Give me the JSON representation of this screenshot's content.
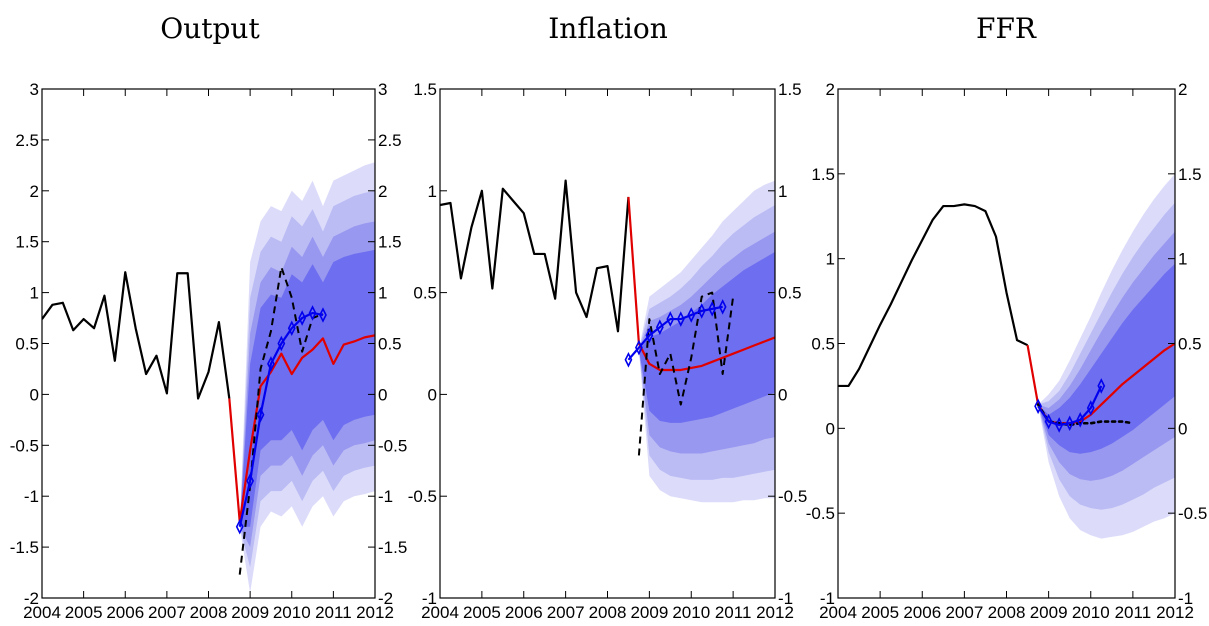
{
  "chart_data": [
    {
      "type": "line",
      "title": "Output",
      "xlim": [
        2004,
        2012
      ],
      "xticks": [
        2004,
        2005,
        2006,
        2007,
        2008,
        2009,
        2010,
        2011,
        2012
      ],
      "ylim": [
        -2,
        3
      ],
      "yticks": [
        -2,
        -1.5,
        -1,
        -0.5,
        0,
        0.5,
        1,
        1.5,
        2,
        2.5,
        3
      ],
      "ytick_labels": [
        "-2",
        "-1.5",
        "-1",
        "-0.5",
        "0",
        "0.5",
        "1",
        "1.5",
        "2",
        "2.5",
        "3"
      ],
      "fan": {
        "x": [
          2008.75,
          2009.0,
          2009.25,
          2009.5,
          2009.75,
          2010.0,
          2010.25,
          2010.5,
          2010.75,
          2011.0,
          2011.25,
          2011.5,
          2011.75,
          2012.0
        ],
        "bands": [
          {
            "lower": [
              -1.3,
              -1.95,
              -1.3,
              -1.15,
              -1.2,
              -1.1,
              -1.3,
              -1.1,
              -1.0,
              -1.2,
              -1.05,
              -1.0,
              -0.98,
              -0.95
            ],
            "upper": [
              -1.3,
              1.3,
              1.7,
              1.85,
              1.8,
              2.0,
              1.9,
              2.1,
              1.85,
              2.1,
              2.15,
              2.2,
              2.25,
              2.28
            ]
          },
          {
            "lower": [
              -1.3,
              -1.7,
              -1.05,
              -0.95,
              -0.95,
              -0.85,
              -1.05,
              -0.85,
              -0.75,
              -0.95,
              -0.8,
              -0.75,
              -0.72,
              -0.7
            ],
            "upper": [
              -1.3,
              0.95,
              1.4,
              1.55,
              1.5,
              1.75,
              1.65,
              1.82,
              1.6,
              1.85,
              1.9,
              1.95,
              1.98,
              2.0
            ]
          },
          {
            "lower": [
              -1.3,
              -1.5,
              -0.8,
              -0.7,
              -0.7,
              -0.6,
              -0.8,
              -0.6,
              -0.5,
              -0.7,
              -0.55,
              -0.5,
              -0.48,
              -0.45
            ],
            "upper": [
              -1.3,
              0.6,
              1.1,
              1.25,
              1.2,
              1.45,
              1.35,
              1.55,
              1.35,
              1.55,
              1.6,
              1.65,
              1.68,
              1.7
            ]
          },
          {
            "lower": [
              -1.3,
              -1.3,
              -0.55,
              -0.45,
              -0.45,
              -0.35,
              -0.55,
              -0.35,
              -0.25,
              -0.45,
              -0.3,
              -0.25,
              -0.22,
              -0.2
            ],
            "upper": [
              -1.3,
              0.3,
              0.85,
              0.98,
              0.95,
              1.18,
              1.1,
              1.28,
              1.1,
              1.3,
              1.35,
              1.38,
              1.4,
              1.42
            ]
          }
        ]
      },
      "series": [
        {
          "color": "#000000",
          "style": "solid",
          "width": 2.2,
          "x": [
            2004.0,
            2004.25,
            2004.5,
            2004.75,
            2005.0,
            2005.25,
            2005.5,
            2005.75,
            2006.0,
            2006.25,
            2006.5,
            2006.75,
            2007.0,
            2007.25,
            2007.5,
            2007.75,
            2008.0,
            2008.25,
            2008.5
          ],
          "y": [
            0.74,
            0.88,
            0.9,
            0.63,
            0.74,
            0.65,
            0.97,
            0.33,
            1.2,
            0.65,
            0.2,
            0.38,
            0.01,
            1.19,
            1.19,
            -0.04,
            0.22,
            0.71,
            -0.04
          ]
        },
        {
          "color": "#e00000",
          "style": "solid",
          "width": 2.2,
          "x": [
            2008.5,
            2008.75,
            2009.0,
            2009.25,
            2009.5,
            2009.75,
            2010.0,
            2010.25,
            2010.5,
            2010.75,
            2011.0,
            2011.25,
            2011.5,
            2011.75,
            2012.0
          ],
          "y": [
            -0.04,
            -1.25,
            -0.55,
            0.08,
            0.22,
            0.4,
            0.2,
            0.36,
            0.44,
            0.55,
            0.3,
            0.49,
            0.52,
            0.56,
            0.58
          ]
        },
        {
          "color": "#000000",
          "style": "dashed",
          "width": 2.0,
          "x": [
            2008.75,
            2009.0,
            2009.25,
            2009.5,
            2009.75,
            2010.0,
            2010.25,
            2010.5,
            2010.75
          ],
          "y": [
            -1.77,
            -0.9,
            0.25,
            0.62,
            1.25,
            0.95,
            0.42,
            0.75,
            0.79
          ]
        },
        {
          "color": "#0000ee",
          "style": "solid",
          "width": 2.2,
          "markers": "diamond",
          "x": [
            2008.75,
            2009.0,
            2009.25,
            2009.5,
            2009.75,
            2010.0,
            2010.25,
            2010.5,
            2010.75
          ],
          "y": [
            -1.3,
            -0.85,
            -0.2,
            0.3,
            0.5,
            0.65,
            0.75,
            0.8,
            0.78
          ]
        }
      ]
    },
    {
      "type": "line",
      "title": "Inflation",
      "xlim": [
        2004,
        2012
      ],
      "xticks": [
        2004,
        2005,
        2006,
        2007,
        2008,
        2009,
        2010,
        2011,
        2012
      ],
      "ylim": [
        -1,
        1.5
      ],
      "yticks": [
        -1,
        -0.5,
        0,
        0.5,
        1,
        1.5
      ],
      "ytick_labels": [
        "-1",
        "-0.5",
        "0",
        "0.5",
        "1",
        "1.5"
      ],
      "fan": {
        "x": [
          2008.75,
          2009.0,
          2009.25,
          2009.5,
          2009.75,
          2010.0,
          2010.25,
          2010.5,
          2010.75,
          2011.0,
          2011.25,
          2011.5,
          2011.75,
          2012.0
        ],
        "bands": [
          {
            "lower": [
              0.22,
              -0.4,
              -0.47,
              -0.5,
              -0.51,
              -0.52,
              -0.53,
              -0.53,
              -0.53,
              -0.53,
              -0.52,
              -0.52,
              -0.51,
              -0.51
            ],
            "upper": [
              0.22,
              0.48,
              0.52,
              0.56,
              0.6,
              0.66,
              0.72,
              0.78,
              0.85,
              0.9,
              0.95,
              1.0,
              1.03,
              1.05
            ]
          },
          {
            "lower": [
              0.22,
              -0.3,
              -0.37,
              -0.4,
              -0.41,
              -0.42,
              -0.42,
              -0.42,
              -0.41,
              -0.41,
              -0.4,
              -0.39,
              -0.38,
              -0.37
            ],
            "upper": [
              0.22,
              0.42,
              0.45,
              0.48,
              0.52,
              0.57,
              0.63,
              0.68,
              0.74,
              0.79,
              0.83,
              0.87,
              0.9,
              0.93
            ]
          },
          {
            "lower": [
              0.22,
              -0.2,
              -0.26,
              -0.28,
              -0.29,
              -0.29,
              -0.29,
              -0.28,
              -0.27,
              -0.26,
              -0.25,
              -0.24,
              -0.22,
              -0.21
            ],
            "upper": [
              0.22,
              0.36,
              0.38,
              0.41,
              0.44,
              0.48,
              0.53,
              0.58,
              0.63,
              0.67,
              0.71,
              0.74,
              0.77,
              0.8
            ]
          },
          {
            "lower": [
              0.22,
              -0.08,
              -0.13,
              -0.14,
              -0.14,
              -0.13,
              -0.12,
              -0.11,
              -0.09,
              -0.07,
              -0.05,
              -0.03,
              -0.01,
              0.01
            ],
            "upper": [
              0.22,
              0.28,
              0.3,
              0.33,
              0.36,
              0.4,
              0.44,
              0.49,
              0.53,
              0.57,
              0.61,
              0.64,
              0.67,
              0.7
            ]
          }
        ]
      },
      "series": [
        {
          "color": "#000000",
          "style": "solid",
          "width": 2.2,
          "x": [
            2004.0,
            2004.25,
            2004.5,
            2004.75,
            2005.0,
            2005.25,
            2005.5,
            2005.75,
            2006.0,
            2006.25,
            2006.5,
            2006.75,
            2007.0,
            2007.25,
            2007.5,
            2007.75,
            2008.0,
            2008.25,
            2008.5
          ],
          "y": [
            0.93,
            0.94,
            0.57,
            0.82,
            1.0,
            0.52,
            1.01,
            0.95,
            0.89,
            0.69,
            0.69,
            0.47,
            1.05,
            0.5,
            0.38,
            0.62,
            0.63,
            0.31,
            0.97
          ]
        },
        {
          "color": "#e00000",
          "style": "solid",
          "width": 2.2,
          "x": [
            2008.5,
            2008.75,
            2009.0,
            2009.25,
            2009.5,
            2009.75,
            2010.0,
            2010.25,
            2010.5,
            2010.75,
            2011.0,
            2011.25,
            2011.5,
            2011.75,
            2012.0
          ],
          "y": [
            0.97,
            0.25,
            0.15,
            0.12,
            0.12,
            0.12,
            0.13,
            0.14,
            0.16,
            0.18,
            0.2,
            0.22,
            0.24,
            0.26,
            0.28
          ]
        },
        {
          "color": "#000000",
          "style": "dashed",
          "width": 2.0,
          "x": [
            2008.75,
            2009.0,
            2009.25,
            2009.5,
            2009.75,
            2010.0,
            2010.25,
            2010.5,
            2010.75,
            2011.0
          ],
          "y": [
            -0.3,
            0.37,
            0.1,
            0.2,
            -0.05,
            0.18,
            0.48,
            0.5,
            0.1,
            0.48
          ]
        },
        {
          "color": "#0000ee",
          "style": "solid",
          "width": 2.2,
          "markers": "diamond",
          "x": [
            2008.5,
            2008.75,
            2009.0,
            2009.25,
            2009.5,
            2009.75,
            2010.0,
            2010.25,
            2010.5,
            2010.75
          ],
          "y": [
            0.17,
            0.23,
            0.29,
            0.33,
            0.37,
            0.37,
            0.39,
            0.41,
            0.42,
            0.43
          ]
        }
      ]
    },
    {
      "type": "line",
      "title": "FFR",
      "xlim": [
        2004,
        2012
      ],
      "xticks": [
        2004,
        2005,
        2006,
        2007,
        2008,
        2009,
        2010,
        2011,
        2012
      ],
      "ylim": [
        -1,
        2
      ],
      "yticks": [
        -1,
        -0.5,
        0,
        0.5,
        1,
        1.5,
        2
      ],
      "ytick_labels": [
        "-1",
        "-0.5",
        "0",
        "0.5",
        "1",
        "1.5",
        "2"
      ],
      "fan": {
        "x": [
          2008.75,
          2009.0,
          2009.25,
          2009.5,
          2009.75,
          2010.0,
          2010.25,
          2010.5,
          2010.75,
          2011.0,
          2011.25,
          2011.5,
          2011.75,
          2012.0
        ],
        "bands": [
          {
            "lower": [
              0.14,
              -0.2,
              -0.4,
              -0.53,
              -0.6,
              -0.63,
              -0.65,
              -0.64,
              -0.63,
              -0.61,
              -0.58,
              -0.55,
              -0.53,
              -0.5
            ],
            "upper": [
              0.14,
              0.2,
              0.28,
              0.4,
              0.53,
              0.66,
              0.8,
              0.93,
              1.05,
              1.16,
              1.26,
              1.35,
              1.43,
              1.5
            ]
          },
          {
            "lower": [
              0.14,
              -0.14,
              -0.3,
              -0.4,
              -0.45,
              -0.47,
              -0.48,
              -0.47,
              -0.45,
              -0.42,
              -0.39,
              -0.35,
              -0.32,
              -0.29
            ],
            "upper": [
              0.14,
              0.16,
              0.22,
              0.32,
              0.44,
              0.56,
              0.68,
              0.8,
              0.91,
              1.01,
              1.1,
              1.18,
              1.26,
              1.33
            ]
          },
          {
            "lower": [
              0.14,
              -0.09,
              -0.2,
              -0.27,
              -0.3,
              -0.31,
              -0.3,
              -0.28,
              -0.25,
              -0.21,
              -0.17,
              -0.13,
              -0.09,
              -0.05
            ],
            "upper": [
              0.14,
              0.12,
              0.17,
              0.25,
              0.35,
              0.46,
              0.57,
              0.67,
              0.77,
              0.86,
              0.94,
              1.02,
              1.09,
              1.16
            ]
          },
          {
            "lower": [
              0.14,
              -0.04,
              -0.1,
              -0.14,
              -0.15,
              -0.14,
              -0.12,
              -0.09,
              -0.05,
              -0.01,
              0.04,
              0.09,
              0.14,
              0.19
            ],
            "upper": [
              0.14,
              0.08,
              0.12,
              0.18,
              0.26,
              0.35,
              0.44,
              0.53,
              0.62,
              0.7,
              0.77,
              0.84,
              0.91,
              0.97
            ]
          }
        ]
      },
      "series": [
        {
          "color": "#000000",
          "style": "solid",
          "width": 2.2,
          "x": [
            2004.0,
            2004.25,
            2004.5,
            2004.75,
            2005.0,
            2005.25,
            2005.5,
            2005.75,
            2006.0,
            2006.25,
            2006.5,
            2006.75,
            2007.0,
            2007.25,
            2007.5,
            2007.75,
            2008.0,
            2008.25,
            2008.5
          ],
          "y": [
            0.25,
            0.25,
            0.35,
            0.48,
            0.61,
            0.73,
            0.86,
            0.99,
            1.11,
            1.23,
            1.31,
            1.31,
            1.32,
            1.31,
            1.28,
            1.13,
            0.8,
            0.52,
            0.49
          ]
        },
        {
          "color": "#e00000",
          "style": "solid",
          "width": 2.2,
          "x": [
            2008.5,
            2008.75,
            2009.0,
            2009.25,
            2009.5,
            2009.75,
            2010.0,
            2010.25,
            2010.5,
            2010.75,
            2011.0,
            2011.25,
            2011.5,
            2011.75,
            2012.0
          ],
          "y": [
            0.49,
            0.14,
            0.04,
            0.03,
            0.03,
            0.04,
            0.08,
            0.14,
            0.2,
            0.26,
            0.31,
            0.36,
            0.41,
            0.46,
            0.5
          ]
        },
        {
          "color": "#000000",
          "style": "dotted",
          "width": 2.6,
          "x": [
            2008.75,
            2009.0,
            2009.25,
            2009.5,
            2009.75,
            2010.0,
            2010.25,
            2010.5,
            2010.75,
            2011.0
          ],
          "y": [
            0.14,
            0.04,
            0.03,
            0.02,
            0.03,
            0.03,
            0.04,
            0.04,
            0.04,
            0.03
          ]
        },
        {
          "color": "#0000ee",
          "style": "solid",
          "width": 2.2,
          "markers": "diamond",
          "x": [
            2008.75,
            2009.0,
            2009.25,
            2009.5,
            2009.75,
            2010.0,
            2010.25
          ],
          "y": [
            0.13,
            0.04,
            0.02,
            0.03,
            0.05,
            0.12,
            0.25
          ]
        }
      ]
    }
  ],
  "colors": {
    "fan": [
      "#dcdcfa",
      "#bcbcf5",
      "#9898f0",
      "#6e6ef0"
    ],
    "frame": "#000000"
  }
}
